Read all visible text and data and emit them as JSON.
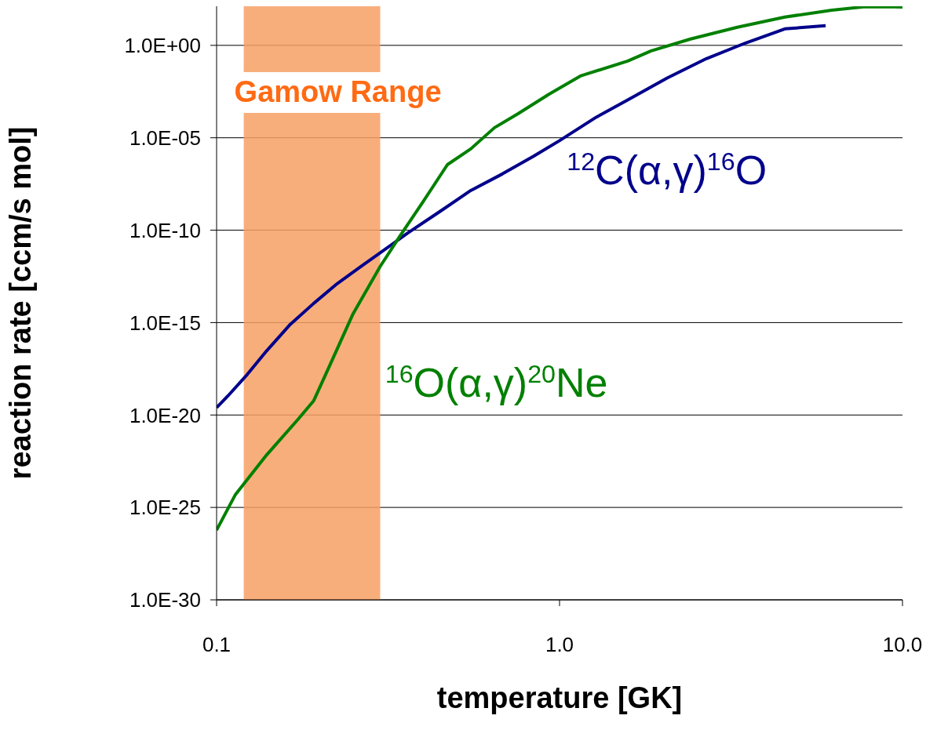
{
  "chart_data": {
    "type": "line",
    "xlabel": "temperature   [GK]",
    "ylabel": "reaction rate   [ccm/s mol]",
    "log": "xy",
    "grid": "y",
    "marker": "none",
    "line_style": "solid",
    "xlim": [
      0.1,
      10
    ],
    "xticks": [
      0.1,
      {
        "value": 1,
        "label": "1.0"
      },
      {
        "value": 10,
        "label": "10.0"
      }
    ],
    "ylim": [
      1e-30,
      130
    ],
    "yticks": [
      {
        "value": 1e-30,
        "label": "1.0E-30"
      },
      {
        "value": 1e-25,
        "label": "1.0E-25"
      },
      {
        "value": 1e-20,
        "label": "1.0E-20"
      },
      {
        "value": 1e-15,
        "label": "1.0E-15"
      },
      {
        "value": 1e-10,
        "label": "1.0E-10"
      },
      {
        "value": 1e-05,
        "label": "1.0E-05"
      },
      {
        "value": 1,
        "label": "1.0E+00"
      }
    ],
    "bands": [
      {
        "axis": "x",
        "from": 0.12,
        "to": 0.3,
        "label": "Gamow Range",
        "color": "#f7a064"
      }
    ],
    "series": [
      {
        "name": "$^{12}$C(α,γ)$^{16}$O",
        "color": "#00008b",
        "x": [
          0.1,
          0.108,
          0.123,
          0.14,
          0.164,
          0.192,
          0.225,
          0.264,
          0.3,
          0.361,
          0.447,
          0.551,
          0.681,
          0.84,
          1.0,
          1.28,
          1.58,
          2.06,
          2.68,
          3.49,
          4.54,
          5.97
        ],
        "values": [
          2.5e-20,
          1.1e-19,
          1.6e-18,
          3e-17,
          8e-16,
          1.1e-14,
          1.3e-13,
          1.1e-12,
          6e-12,
          7e-11,
          1e-09,
          1.4e-08,
          1.1e-07,
          1e-06,
          7e-06,
          0.00013,
          0.0011,
          0.017,
          0.19,
          1.35,
          7.8,
          11.5
        ]
      },
      {
        "name": "$^{16}$O(α,γ)$^{20}$Ne",
        "color": "#008000",
        "x": [
          0.1,
          0.1135,
          0.14,
          0.173,
          0.192,
          0.214,
          0.25,
          0.3,
          0.343,
          0.402,
          0.471,
          0.551,
          0.646,
          0.757,
          0.933,
          1.15,
          1.58,
          1.85,
          2.41,
          3.3,
          4.54,
          6.22,
          7.69,
          9.0,
          10
        ],
        "values": [
          6e-27,
          5e-25,
          7e-23,
          6e-21,
          6e-20,
          5e-18,
          3e-15,
          1.1e-12,
          5e-11,
          4e-09,
          3.5e-07,
          2.5e-06,
          3.5e-05,
          0.0002,
          0.0023,
          0.022,
          0.14,
          0.5,
          2.2,
          9.5,
          34,
          80,
          120,
          125,
          118
        ]
      }
    ]
  }
}
